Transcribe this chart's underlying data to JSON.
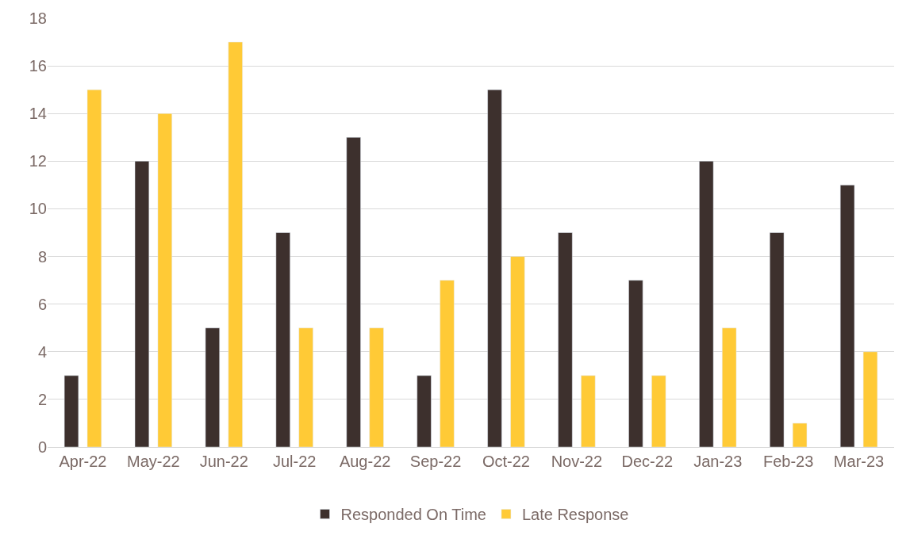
{
  "chart_data": {
    "type": "bar",
    "categories": [
      "Apr-22",
      "May-22",
      "Jun-22",
      "Jul-22",
      "Aug-22",
      "Sep-22",
      "Oct-22",
      "Nov-22",
      "Dec-22",
      "Jan-23",
      "Feb-23",
      "Mar-23"
    ],
    "series": [
      {
        "name": "Responded On Time",
        "color": "#3d302d",
        "values": [
          3,
          12,
          5,
          9,
          13,
          3,
          15,
          9,
          7,
          12,
          9,
          11
        ]
      },
      {
        "name": "Late Response",
        "color": "#ffca36",
        "values": [
          15,
          14,
          17,
          5,
          5,
          7,
          8,
          3,
          3,
          5,
          1,
          4
        ]
      }
    ],
    "ylim": [
      0,
      18
    ],
    "yticks": [
      0,
      2,
      4,
      6,
      8,
      10,
      12,
      14,
      16,
      18
    ],
    "grid": "y",
    "legend": "bottom"
  }
}
